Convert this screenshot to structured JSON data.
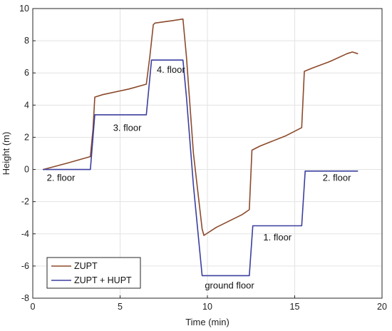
{
  "chart_data": {
    "type": "line",
    "title": "",
    "xlabel": "Time (min)",
    "ylabel": "Height (m)",
    "xlim": [
      0,
      20
    ],
    "ylim": [
      -8,
      10
    ],
    "xticks": [
      0,
      5,
      10,
      15,
      20
    ],
    "yticks": [
      -8,
      -6,
      -4,
      -2,
      0,
      2,
      4,
      6,
      8,
      10
    ],
    "grid": true,
    "legend": {
      "placement": "bottom-left"
    },
    "series": [
      {
        "name": "ZUPT",
        "color": "#8B4A2B",
        "x": [
          0.6,
          2.0,
          3.3,
          3.45,
          3.55,
          4.0,
          5.5,
          6.5,
          6.7,
          6.9,
          7.0,
          8.0,
          8.6,
          8.8,
          9.2,
          9.7,
          9.8,
          10.5,
          12.0,
          12.4,
          12.55,
          13.0,
          14.5,
          15.4,
          15.55,
          16.0,
          17.0,
          18.0,
          18.3,
          18.6
        ],
        "y": [
          0.0,
          0.4,
          0.8,
          2.5,
          4.5,
          4.65,
          5.0,
          5.3,
          7.0,
          9.0,
          9.1,
          9.25,
          9.35,
          7.0,
          1.0,
          -3.7,
          -4.1,
          -3.6,
          -2.8,
          -2.5,
          1.2,
          1.45,
          2.1,
          2.6,
          6.1,
          6.3,
          6.7,
          7.2,
          7.3,
          7.2
        ]
      },
      {
        "name": "ZUPT + HUPT",
        "color": "#3B3F9E",
        "x": [
          0.6,
          3.3,
          3.55,
          6.5,
          6.8,
          8.6,
          8.8,
          9.2,
          9.7,
          10.5,
          12.4,
          12.6,
          15.4,
          15.6,
          18.6
        ],
        "y": [
          0.0,
          0.0,
          3.4,
          3.4,
          6.8,
          6.8,
          4.5,
          -1.0,
          -6.6,
          -6.6,
          -6.6,
          -3.5,
          -3.5,
          -0.1,
          -0.1
        ]
      }
    ],
    "annotations": [
      {
        "text": "2. floor",
        "x": 0.8,
        "y": -0.7
      },
      {
        "text": "3. floor",
        "x": 4.6,
        "y": 2.4
      },
      {
        "text": "4. floor",
        "x": 7.1,
        "y": 6.0
      },
      {
        "text": "ground floor",
        "x": 9.85,
        "y": -7.4
      },
      {
        "text": "1. floor",
        "x": 13.2,
        "y": -4.4
      },
      {
        "text": "2. floor",
        "x": 16.6,
        "y": -0.7
      }
    ]
  }
}
